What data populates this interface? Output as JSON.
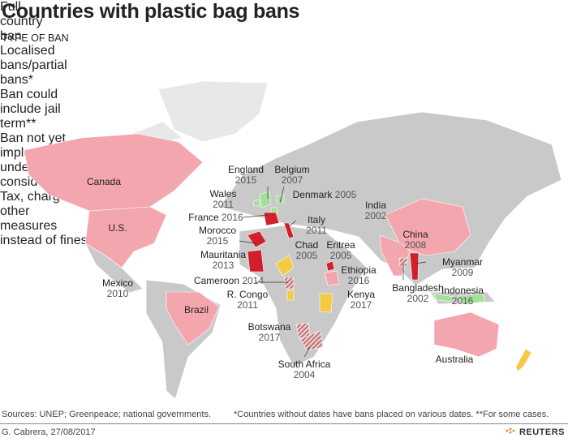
{
  "title": "Countries with plastic bag bans",
  "legend": {
    "heading": "TYPE OF BAN",
    "items": [
      {
        "label": "Full country ban",
        "color": "#d21f2c"
      },
      {
        "label": "Localised bans/partial bans*",
        "color": "#f4a6ae"
      },
      {
        "label": "Ban could include jail term**",
        "color": "#9e3a40"
      },
      {
        "label": "Ban not yet implemented/ under consideration",
        "color": "#f6c945"
      },
      {
        "label": "Tax, charges or other measures instead of fines",
        "color": "#a6de9c"
      }
    ]
  },
  "countries": [
    {
      "name": "Canada"
    },
    {
      "name": "U.S."
    },
    {
      "name": "Mexico",
      "year": "2010"
    },
    {
      "name": "Brazil"
    },
    {
      "name": "England",
      "year": "2015"
    },
    {
      "name": "Belgium",
      "year": "2007"
    },
    {
      "name": "Wales",
      "year": "2011"
    },
    {
      "name": "Denmark",
      "year": "2005"
    },
    {
      "name": "France",
      "year": "2016"
    },
    {
      "name": "Italy",
      "year": "2011"
    },
    {
      "name": "Morocco",
      "year": "2015"
    },
    {
      "name": "Mauritania",
      "year": "2013"
    },
    {
      "name": "Chad",
      "year": "2005"
    },
    {
      "name": "Eritrea",
      "year": "2005"
    },
    {
      "name": "Ethiopia",
      "year": "2016"
    },
    {
      "name": "Cameroon",
      "year": "2014"
    },
    {
      "name": "R. Congo",
      "year": "2011"
    },
    {
      "name": "Kenya",
      "year": "2017"
    },
    {
      "name": "Botswana",
      "year": "2017"
    },
    {
      "name": "South Africa",
      "year": "2004"
    },
    {
      "name": "India",
      "year": "2002"
    },
    {
      "name": "China",
      "year": "2008"
    },
    {
      "name": "Myanmar",
      "year": "2009"
    },
    {
      "name": "Bangladesh",
      "year": "2002"
    },
    {
      "name": "Indonesia",
      "year": "2016"
    },
    {
      "name": "Australia"
    }
  ],
  "footer": {
    "sources": "Sources: UNEP; Greenpeace; national governments.",
    "note": "*Countries without dates have bans placed on various dates. **For some cases.",
    "credit": "G. Cabrera, 27/08/2017",
    "brand": "REUTERS"
  }
}
